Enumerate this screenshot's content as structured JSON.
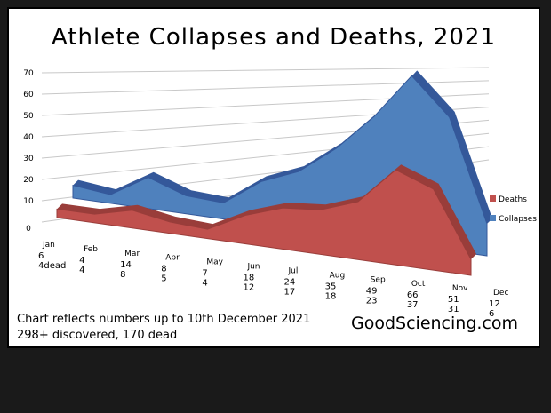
{
  "chart_data": {
    "type": "area",
    "title": "Athlete Collapses and Deaths, 2021",
    "categories": [
      "Jan",
      "Feb",
      "Mar",
      "Apr",
      "May",
      "Jun",
      "Jul",
      "Aug",
      "Sep",
      "Oct",
      "Nov",
      "Dec"
    ],
    "series": [
      {
        "name": "Deaths",
        "color": "#c0504d",
        "values": [
          4,
          4,
          8,
          5,
          4,
          12,
          17,
          18,
          23,
          37,
          31,
          6
        ]
      },
      {
        "name": "Collapses",
        "color": "#4f81bd",
        "values": [
          6,
          4,
          14,
          8,
          7,
          18,
          24,
          35,
          49,
          66,
          51,
          12
        ]
      }
    ],
    "value_labels": [
      [
        "6",
        "4dead"
      ],
      [
        "4",
        "4"
      ],
      [
        "14",
        "8"
      ],
      [
        "8",
        "5"
      ],
      [
        "7",
        "4"
      ],
      [
        "18",
        "12"
      ],
      [
        "24",
        "17"
      ],
      [
        "35",
        "18"
      ],
      [
        "49",
        "23"
      ],
      [
        "66",
        "37"
      ],
      [
        "51",
        "31"
      ],
      [
        "12",
        "6"
      ]
    ],
    "y_ticks": [
      "0",
      "10",
      "20",
      "30",
      "40",
      "50",
      "60",
      "70"
    ],
    "ylim": [
      0,
      70
    ],
    "grid": true,
    "legend_position": "right"
  },
  "footer": {
    "note_line1": "Chart reflects numbers up to 10th December 2021",
    "note_line2": "298+ discovered, 170 dead",
    "site": "GoodSciencing.com"
  }
}
